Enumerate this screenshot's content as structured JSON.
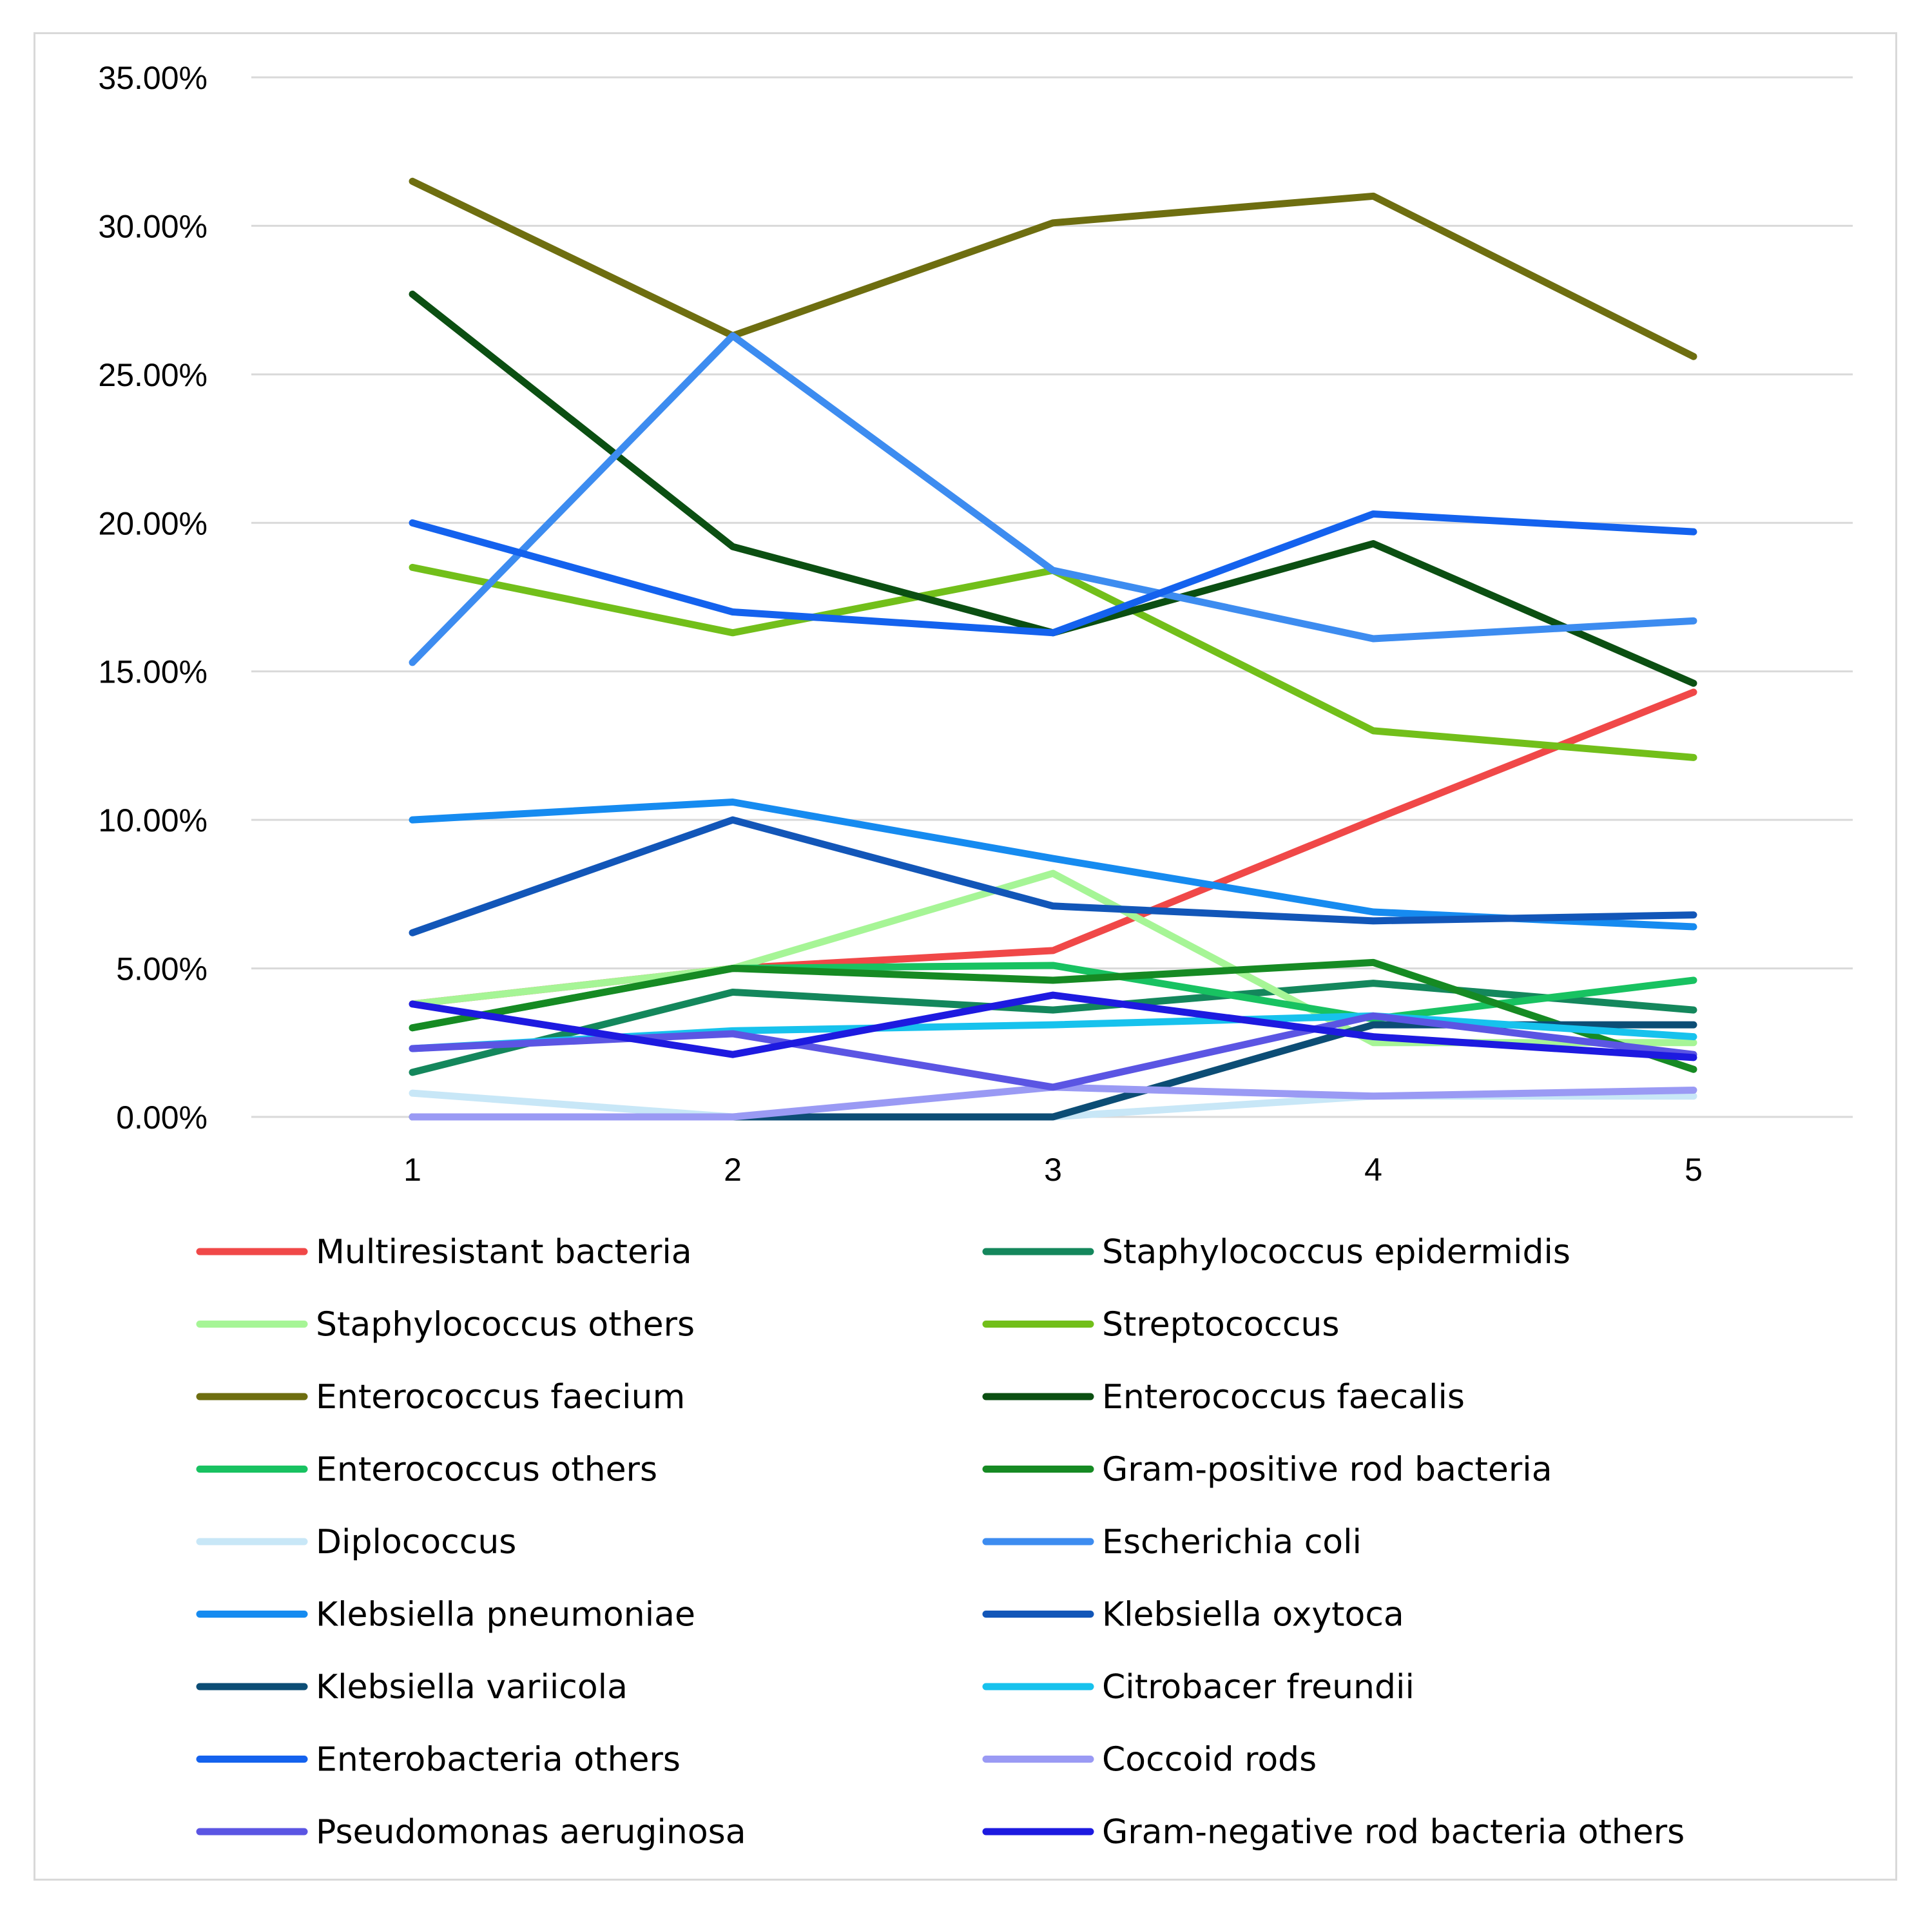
{
  "chart_data": {
    "type": "line",
    "title": "",
    "xlabel": "",
    "ylabel": "",
    "x": [
      1,
      2,
      3,
      4,
      5
    ],
    "x_tick_labels": [
      "1",
      "2",
      "3",
      "4",
      "5"
    ],
    "ylim": [
      0,
      0.35
    ],
    "y_ticks": [
      0,
      0.05,
      0.1,
      0.15,
      0.2,
      0.25,
      0.3,
      0.35
    ],
    "y_tick_labels": [
      "0.00%",
      "5.00%",
      "10.00%",
      "15.00%",
      "20.00%",
      "25.00%",
      "30.00%",
      "35.00%"
    ],
    "grid": "horizontal",
    "legend_position": "bottom",
    "series": [
      {
        "name": "Multiresistant bacteria",
        "color": "#f04848",
        "values": [
          0.038,
          0.05,
          0.056,
          0.1,
          0.143
        ]
      },
      {
        "name": "Staphylococcus epidermidis",
        "color": "#14875c",
        "values": [
          0.015,
          0.042,
          0.036,
          0.045,
          0.036
        ]
      },
      {
        "name": "Staphylococcus others",
        "color": "#a6f596",
        "values": [
          0.038,
          0.05,
          0.082,
          0.025,
          0.025
        ]
      },
      {
        "name": "Streptococcus",
        "color": "#72bf1a",
        "values": [
          0.185,
          0.163,
          0.184,
          0.13,
          0.121
        ]
      },
      {
        "name": "Enterococcus faecium",
        "color": "#6e6e10",
        "values": [
          0.315,
          0.263,
          0.301,
          0.31,
          0.256
        ]
      },
      {
        "name": "Enterococcus faecalis",
        "color": "#0b4f12",
        "values": [
          0.277,
          0.192,
          0.163,
          0.193,
          0.146
        ]
      },
      {
        "name": "Enterococcus others",
        "color": "#18c261",
        "values": [
          0.03,
          0.05,
          0.051,
          0.033,
          0.046
        ]
      },
      {
        "name": "Gram-positive rod bacteria",
        "color": "#168a23",
        "values": [
          0.03,
          0.05,
          0.046,
          0.052,
          0.016
        ]
      },
      {
        "name": "Diplococcus",
        "color": "#c8e7f7",
        "values": [
          0.008,
          0.0,
          0.0,
          0.007,
          0.007
        ]
      },
      {
        "name": "Escherichia coli",
        "color": "#3d8cf0",
        "values": [
          0.153,
          0.263,
          0.184,
          0.161,
          0.167
        ]
      },
      {
        "name": "Klebsiella pneumoniae",
        "color": "#168bf0",
        "values": [
          0.1,
          0.106,
          0.087,
          0.069,
          0.064
        ]
      },
      {
        "name": "Klebsiella oxytoca",
        "color": "#1256b8",
        "values": [
          0.062,
          0.1,
          0.071,
          0.066,
          0.068
        ]
      },
      {
        "name": "Klebsiella variicola",
        "color": "#0c4d75",
        "values": [
          0.0,
          0.0,
          0.0,
          0.031,
          0.031
        ]
      },
      {
        "name": "Citrobacer freundii",
        "color": "#17c2ed",
        "values": [
          0.023,
          0.029,
          0.031,
          0.034,
          0.027
        ]
      },
      {
        "name": "Enterobacteria others",
        "color": "#1462ee",
        "values": [
          0.2,
          0.17,
          0.163,
          0.203,
          0.197
        ]
      },
      {
        "name": "Coccoid rods",
        "color": "#9a9af4",
        "values": [
          0.0,
          0.0,
          0.01,
          0.007,
          0.009
        ]
      },
      {
        "name": "Pseudomonas aeruginosa",
        "color": "#5b55e3",
        "values": [
          0.023,
          0.028,
          0.01,
          0.034,
          0.021
        ]
      },
      {
        "name": "Gram-negative rod bacteria others",
        "color": "#1d1ae0",
        "values": [
          0.038,
          0.021,
          0.041,
          0.027,
          0.02
        ]
      }
    ]
  }
}
